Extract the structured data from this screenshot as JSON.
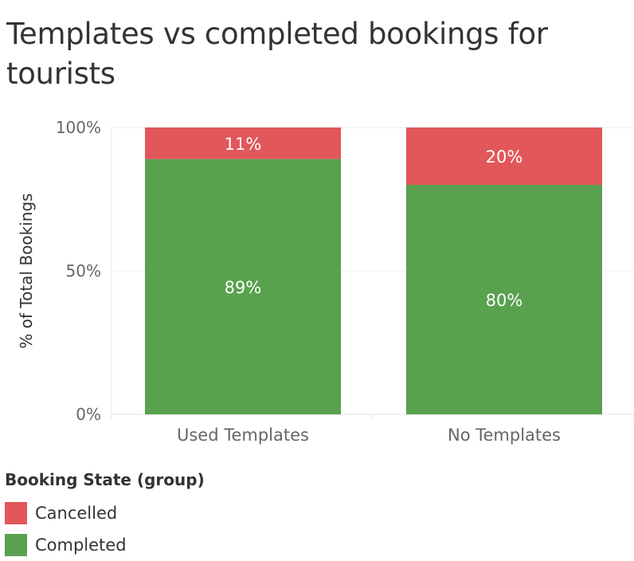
{
  "title": "Templates vs completed bookings for tourists",
  "colors": {
    "cancelled": "#e1575a",
    "completed": "#59a14f",
    "grid": "#eeeeee",
    "text": "#333333",
    "axis_text": "#666666"
  },
  "legend": {
    "title": "Booking State (group)",
    "items": [
      {
        "label": "Cancelled",
        "color": "#e1575a"
      },
      {
        "label": "Completed",
        "color": "#59a14f"
      }
    ]
  },
  "chart_data": {
    "type": "bar",
    "stacked": true,
    "title": "Templates vs completed bookings for tourists",
    "xlabel": "",
    "ylabel": "% of Total Bookings",
    "ylim": [
      0,
      100
    ],
    "yticks": [
      {
        "value": 0,
        "label": "0%"
      },
      {
        "value": 50,
        "label": "50%"
      },
      {
        "value": 100,
        "label": "100%"
      }
    ],
    "categories": [
      "Used Templates",
      "No Templates"
    ],
    "series": [
      {
        "name": "Completed",
        "color": "#59a14f",
        "values": [
          89,
          80
        ],
        "labels": [
          "89%",
          "80%"
        ]
      },
      {
        "name": "Cancelled",
        "color": "#e1575a",
        "values": [
          11,
          20
        ],
        "labels": [
          "11%",
          "20%"
        ]
      }
    ],
    "grid": true,
    "legend_position": "bottom-left"
  }
}
